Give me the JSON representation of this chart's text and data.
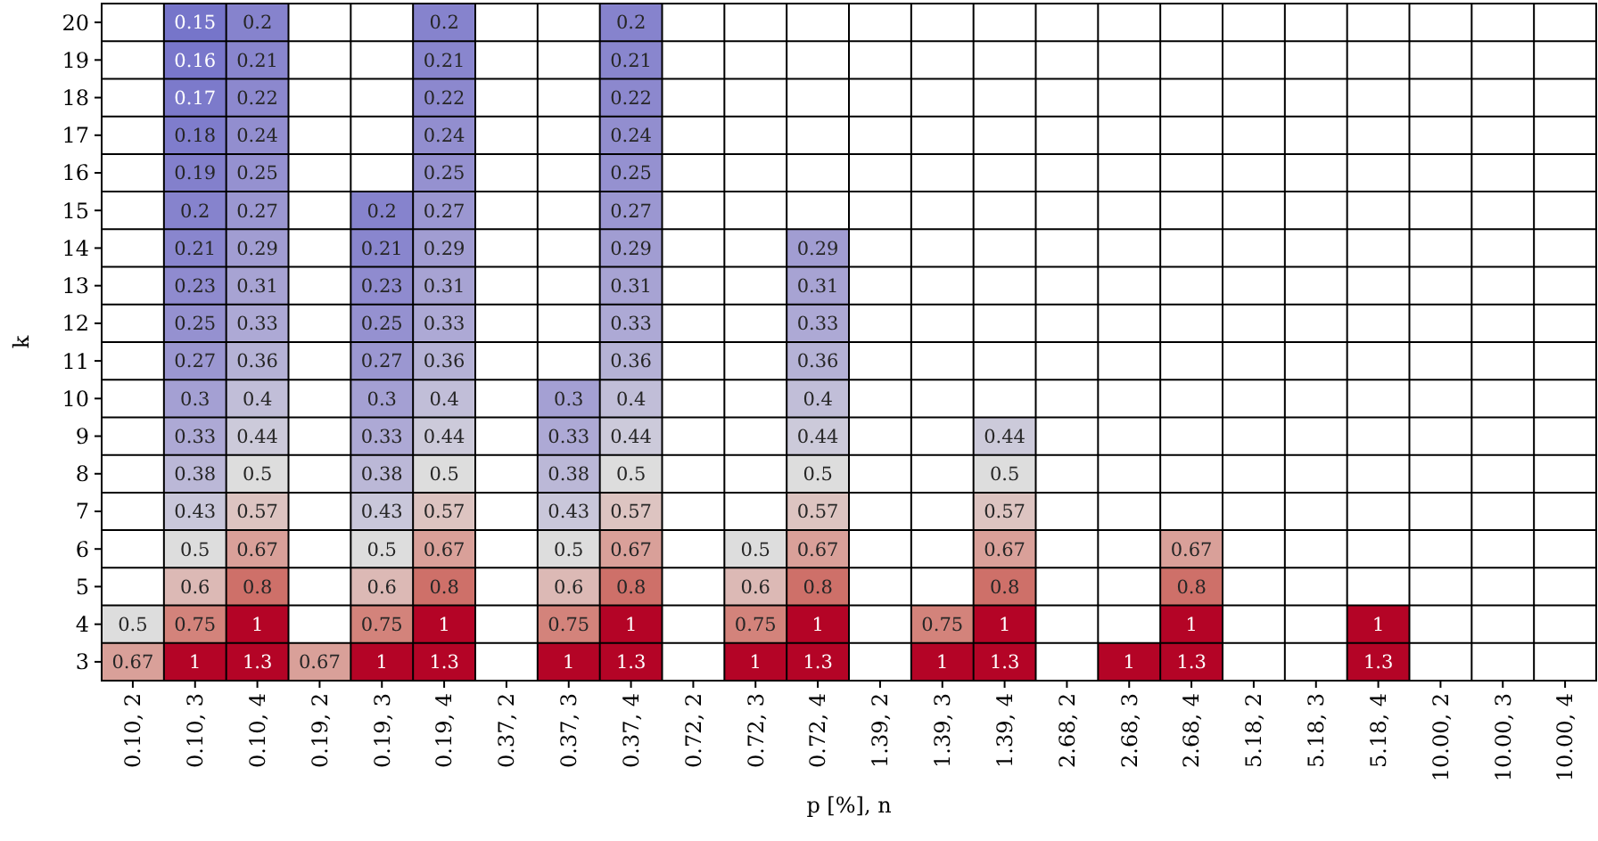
{
  "chart_data": {
    "type": "heatmap",
    "xlabel": "p [%], n",
    "ylabel": "k",
    "grid": true,
    "categories": [
      "0.10, 2",
      "0.10, 3",
      "0.10, 4",
      "0.19, 2",
      "0.19, 3",
      "0.19, 4",
      "0.37, 2",
      "0.37, 3",
      "0.37, 4",
      "0.72, 2",
      "0.72, 3",
      "0.72, 4",
      "1.39, 2",
      "1.39, 3",
      "1.39, 4",
      "2.68, 2",
      "2.68, 3",
      "2.68, 4",
      "5.18, 2",
      "5.18, 3",
      "5.18, 4",
      "10.00, 2",
      "10.00, 3",
      "10.00, 4"
    ],
    "y_categories": [
      "20",
      "19",
      "18",
      "17",
      "16",
      "15",
      "14",
      "13",
      "12",
      "11",
      "10",
      "9",
      "8",
      "7",
      "6",
      "5",
      "4",
      "3"
    ],
    "data_labels": true,
    "cells": [
      [
        null,
        0.15,
        0.2,
        null,
        null,
        0.2,
        null,
        null,
        0.2,
        null,
        null,
        null,
        null,
        null,
        null,
        null,
        null,
        null,
        null,
        null,
        null,
        null,
        null,
        null
      ],
      [
        null,
        0.16,
        0.21,
        null,
        null,
        0.21,
        null,
        null,
        0.21,
        null,
        null,
        null,
        null,
        null,
        null,
        null,
        null,
        null,
        null,
        null,
        null,
        null,
        null,
        null
      ],
      [
        null,
        0.17,
        0.22,
        null,
        null,
        0.22,
        null,
        null,
        0.22,
        null,
        null,
        null,
        null,
        null,
        null,
        null,
        null,
        null,
        null,
        null,
        null,
        null,
        null,
        null
      ],
      [
        null,
        0.18,
        0.24,
        null,
        null,
        0.24,
        null,
        null,
        0.24,
        null,
        null,
        null,
        null,
        null,
        null,
        null,
        null,
        null,
        null,
        null,
        null,
        null,
        null,
        null
      ],
      [
        null,
        0.19,
        0.25,
        null,
        null,
        0.25,
        null,
        null,
        0.25,
        null,
        null,
        null,
        null,
        null,
        null,
        null,
        null,
        null,
        null,
        null,
        null,
        null,
        null,
        null
      ],
      [
        null,
        0.2,
        0.27,
        null,
        0.2,
        0.27,
        null,
        null,
        0.27,
        null,
        null,
        null,
        null,
        null,
        null,
        null,
        null,
        null,
        null,
        null,
        null,
        null,
        null,
        null
      ],
      [
        null,
        0.21,
        0.29,
        null,
        0.21,
        0.29,
        null,
        null,
        0.29,
        null,
        null,
        0.29,
        null,
        null,
        null,
        null,
        null,
        null,
        null,
        null,
        null,
        null,
        null,
        null
      ],
      [
        null,
        0.23,
        0.31,
        null,
        0.23,
        0.31,
        null,
        null,
        0.31,
        null,
        null,
        0.31,
        null,
        null,
        null,
        null,
        null,
        null,
        null,
        null,
        null,
        null,
        null,
        null
      ],
      [
        null,
        0.25,
        0.33,
        null,
        0.25,
        0.33,
        null,
        null,
        0.33,
        null,
        null,
        0.33,
        null,
        null,
        null,
        null,
        null,
        null,
        null,
        null,
        null,
        null,
        null,
        null
      ],
      [
        null,
        0.27,
        0.36,
        null,
        0.27,
        0.36,
        null,
        null,
        0.36,
        null,
        null,
        0.36,
        null,
        null,
        null,
        null,
        null,
        null,
        null,
        null,
        null,
        null,
        null,
        null
      ],
      [
        null,
        0.3,
        0.4,
        null,
        0.3,
        0.4,
        null,
        0.3,
        0.4,
        null,
        null,
        0.4,
        null,
        null,
        null,
        null,
        null,
        null,
        null,
        null,
        null,
        null,
        null,
        null
      ],
      [
        null,
        0.33,
        0.44,
        null,
        0.33,
        0.44,
        null,
        0.33,
        0.44,
        null,
        null,
        0.44,
        null,
        null,
        0.44,
        null,
        null,
        null,
        null,
        null,
        null,
        null,
        null,
        null
      ],
      [
        null,
        0.38,
        0.5,
        null,
        0.38,
        0.5,
        null,
        0.38,
        0.5,
        null,
        null,
        0.5,
        null,
        null,
        0.5,
        null,
        null,
        null,
        null,
        null,
        null,
        null,
        null,
        null
      ],
      [
        null,
        0.43,
        0.57,
        null,
        0.43,
        0.57,
        null,
        0.43,
        0.57,
        null,
        null,
        0.57,
        null,
        null,
        0.57,
        null,
        null,
        null,
        null,
        null,
        null,
        null,
        null,
        null
      ],
      [
        null,
        0.5,
        0.67,
        null,
        0.5,
        0.67,
        null,
        0.5,
        0.67,
        null,
        0.5,
        0.67,
        null,
        null,
        0.67,
        null,
        null,
        0.67,
        null,
        null,
        null,
        null,
        null,
        null
      ],
      [
        null,
        0.6,
        0.8,
        null,
        0.6,
        0.8,
        null,
        0.6,
        0.8,
        null,
        0.6,
        0.8,
        null,
        null,
        0.8,
        null,
        null,
        0.8,
        null,
        null,
        null,
        null,
        null,
        null
      ],
      [
        0.5,
        0.75,
        1,
        null,
        0.75,
        1,
        null,
        0.75,
        1,
        null,
        0.75,
        1,
        null,
        0.75,
        1,
        null,
        null,
        1,
        null,
        null,
        1,
        null,
        null,
        null
      ],
      [
        0.67,
        1,
        1.3,
        0.67,
        1,
        1.3,
        null,
        1,
        1.3,
        null,
        1,
        1.3,
        null,
        1,
        1.3,
        null,
        1,
        1.3,
        null,
        null,
        1.3,
        null,
        null,
        null
      ]
    ]
  }
}
